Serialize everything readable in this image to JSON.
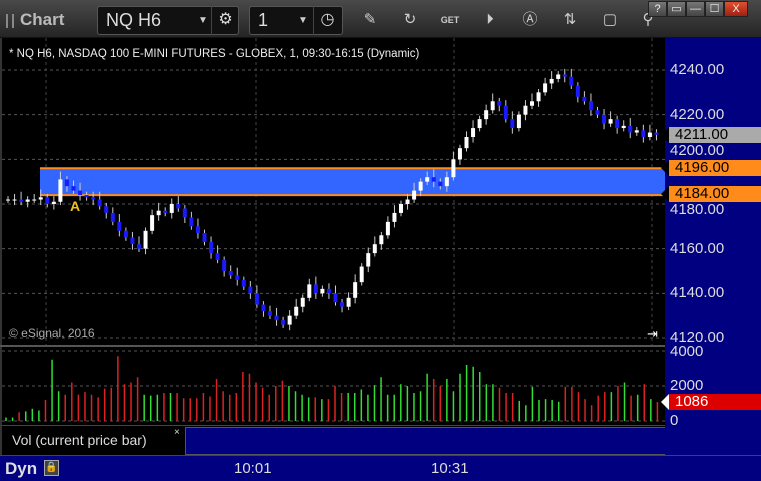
{
  "titlebar": {
    "app_title": "Chart",
    "symbol": "NQ H6",
    "interval": "1",
    "tools": [
      "pencil-icon",
      "refresh-icon",
      "get-icon",
      "play-icon",
      "alert-icon",
      "swap-icon",
      "comment-icon",
      "pin-icon"
    ],
    "window_buttons": [
      "?",
      "▭",
      "—",
      "☐",
      "X"
    ]
  },
  "chart": {
    "symbol_info": "* NQ H6, NASDAQ 100 E-MINI FUTURES - GLOBEX, 1, 09:30-16:15 (Dynamic)",
    "copyright": "© eSignal, 2016",
    "alert_label": "A",
    "dyn_label": "Dyn",
    "colors": {
      "background": "#000000",
      "axis": "#000080",
      "band": "#3366ff",
      "band_edge": "#ff8c1a",
      "up": "#ffffff",
      "down": "#1a1aff",
      "vol_up": "#33dd33",
      "vol_down": "#dd2222"
    }
  },
  "chart_data": [
    {
      "type": "candlestick",
      "ylim": [
        4120,
        4245
      ],
      "y_ticks": [
        "4240.00",
        "4220.00",
        "4200.00",
        "4180.00",
        "4160.00",
        "4140.00",
        "4120.00"
      ],
      "y_tick_values": [
        4240,
        4220,
        4200,
        4180,
        4160,
        4140,
        4120
      ],
      "x_ticks": [
        "10:01",
        "10:31"
      ],
      "last_price": "4211.00",
      "band_high": "4196.00",
      "band_low": "4184.00",
      "band_high_value": 4196,
      "band_low_value": 4184,
      "closes": [
        4182,
        4182,
        4181,
        4182,
        4182,
        4183,
        4180,
        4181,
        4191,
        4188,
        4186,
        4184,
        4183,
        4182,
        4179,
        4176,
        4172,
        4168,
        4165,
        4162,
        4160,
        4168,
        4175,
        4177,
        4176,
        4180,
        4178,
        4174,
        4170,
        4167,
        4163,
        4158,
        4155,
        4150,
        4148,
        4146,
        4143,
        4140,
        4135,
        4132,
        4130,
        4128,
        4126,
        4130,
        4134,
        4138,
        4144,
        4140,
        4142,
        4140,
        4136,
        4134,
        4138,
        4145,
        4152,
        4158,
        4162,
        4166,
        4172,
        4176,
        4180,
        4182,
        4186,
        4190,
        4192,
        4190,
        4188,
        4192,
        4200,
        4205,
        4210,
        4214,
        4218,
        4222,
        4226,
        4224,
        4218,
        4214,
        4220,
        4224,
        4226,
        4230,
        4234,
        4236,
        4238,
        4237,
        4233,
        4228,
        4226,
        4222,
        4220,
        4216,
        4218,
        4214,
        4215,
        4212,
        4213,
        4210,
        4212,
        4211
      ]
    },
    {
      "type": "bar",
      "title": "Vol (current price bar)",
      "ylim": [
        0,
        4000
      ],
      "y_ticks": [
        "4000",
        "2000",
        "0"
      ],
      "y_tick_values": [
        4000,
        2000,
        0
      ],
      "last_value": "1086",
      "values": [
        200,
        200,
        500,
        550,
        700,
        600,
        1200,
        3500,
        1700,
        1500,
        2200,
        1500,
        1650,
        1500,
        1350,
        1850,
        1900,
        3700,
        2100,
        2200,
        2500,
        1500,
        1450,
        1500,
        1600,
        1600,
        1600,
        1300,
        1300,
        1300,
        1600,
        1400,
        2400,
        1700,
        1500,
        1600,
        2800,
        2700,
        2200,
        1900,
        1500,
        2000,
        2300,
        2000,
        1700,
        1500,
        1350,
        1350,
        1250,
        1250,
        2000,
        1600,
        1600,
        1600,
        1800,
        1500,
        2050,
        2500,
        1500,
        1500,
        2100,
        2000,
        1600,
        1700,
        2700,
        2400,
        2000,
        2400,
        1700,
        2700,
        3200,
        3100,
        2800,
        2100,
        2100,
        1900,
        1600,
        1600,
        1150,
        900,
        1950,
        1200,
        1250,
        1200,
        1100,
        1950,
        1950,
        1650,
        1250,
        900,
        1450,
        1650,
        1650,
        2000,
        2200,
        1450,
        1500,
        2100,
        1250,
        1086
      ]
    }
  ]
}
